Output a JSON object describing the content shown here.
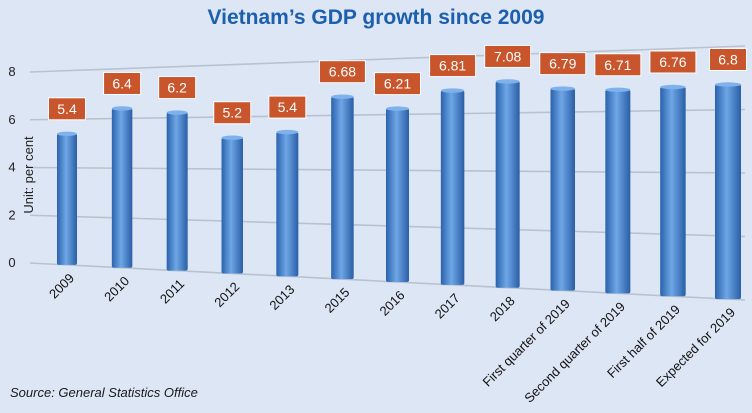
{
  "chart_data": {
    "type": "bar",
    "title": "Vietnam’s GDP growth since 2009",
    "ylabel": "Unit: per cent",
    "xlabel": "",
    "ylim": [
      0,
      8
    ],
    "yticks": [
      "0",
      "2",
      "4",
      "6",
      "8"
    ],
    "grid": true,
    "categories": [
      "2009",
      "2010",
      "2011",
      "2012",
      "2013",
      "2015",
      "2016",
      "2017",
      "2018",
      "First quarter of 2019",
      "Second quarter of 2019",
      "First half of 2019",
      "Expected for 2019"
    ],
    "values": [
      5.4,
      6.4,
      6.2,
      5.2,
      5.4,
      6.68,
      6.21,
      6.81,
      7.08,
      6.79,
      6.71,
      6.76,
      6.8
    ],
    "data_labels": [
      "5.4",
      "6.4",
      "6.2",
      "5.2",
      "5.4",
      "6.68",
      "6.21",
      "6.81",
      "7.08",
      "6.79",
      "6.71",
      "6.76",
      "6.8"
    ],
    "source": "Source: General Statistics Office",
    "colors": {
      "bar": "#3f7fcc",
      "label_bg": "#c8552b",
      "label_text": "#ffffff",
      "title": "#1b5fae",
      "background": "#dde6f4"
    }
  }
}
